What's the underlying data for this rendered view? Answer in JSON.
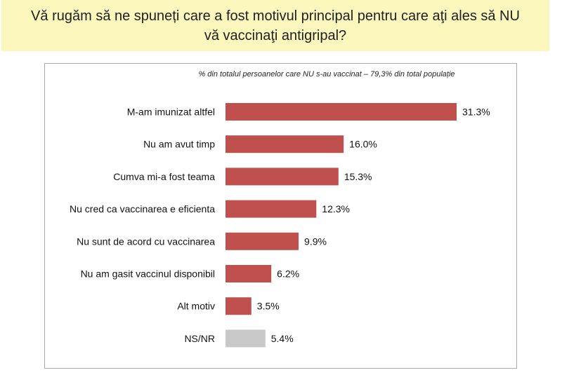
{
  "question": "Vă rugăm să ne spuneți care a fost motivul principal pentru care aţi ales să NU vă vaccinaţi antigripal?",
  "chart_data": {
    "type": "bar",
    "orientation": "horizontal",
    "subtitle": "% din totalul persoanelor care NU s-au vaccinat – 79,3% din total populație",
    "categories": [
      "M-am imunizat altfel",
      "Nu am avut timp",
      "Cumva mi-a fost teama",
      "Nu cred ca vaccinarea e eficienta",
      "Nu sunt de acord cu vaccinarea",
      "Nu am gasit vaccinul disponibil",
      "Alt motiv",
      "NS/NR"
    ],
    "values": [
      31.3,
      16.0,
      15.3,
      12.3,
      9.9,
      6.2,
      3.5,
      5.4
    ],
    "value_labels": [
      "31.3%",
      "16.0%",
      "15.3%",
      "12.3%",
      "9.9%",
      "6.2%",
      "3.5%",
      "5.4%"
    ],
    "bar_colors": [
      "#c0504d",
      "#c0504d",
      "#c0504d",
      "#c0504d",
      "#c0504d",
      "#c0504d",
      "#c0504d",
      "#c8c8c8"
    ],
    "xlim": [
      0,
      31.3
    ],
    "grid": false,
    "legend": "none"
  }
}
